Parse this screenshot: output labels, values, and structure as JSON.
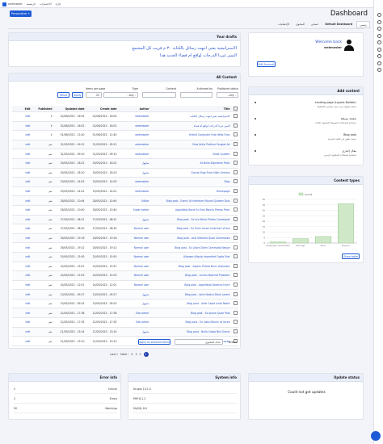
{
  "toolbar": {
    "items": [
      "webmaster",
      "الرئيسية",
      "الاختصارات",
      "إدارة"
    ]
  },
  "page_title": "Dashboard",
  "personalize": "Personalize +",
  "tabs": [
    "رئيسي",
    "Default Dashboard",
    "حسابي",
    "المحتوى",
    "الإحصائيات"
  ],
  "drafts": {
    "title": "Your drafts",
    "items": [
      "الاستراتيجية يعني انتهت رسائل بالكتابة ٣٠ م قريب كل المجتمع",
      "التميز غيرنا الدرجات لواقع ام فضاء الجديد هذا"
    ]
  },
  "content": {
    "title": "All Content",
    "filters": [
      {
        "label": "Published status",
        "value": "- Any -"
      },
      {
        "label": "Authored by",
        "value": ""
      },
      {
        "label": "Content",
        "value": ""
      },
      {
        "label": "Type",
        "value": "- Any -"
      },
      {
        "label": "Items per page",
        "value": "25"
      }
    ],
    "apply": "Apply",
    "reset": "Reset",
    "columns": [
      "Title",
      "Author",
      "Create date",
      "Updated date",
      "Published",
      "Edit"
    ],
    "rows": [
      [
        "الاستراتيجية يعني انتهت رسائل بالكتابة",
        "webmaster",
        "02/06/2023 - 16:05",
        "02/06/2023 - 16:05",
        "لا",
        "edit"
      ],
      [
        "التميز غيرنا الدرجات لواقع ام فضاء",
        "webmaster",
        "02/06/2023 - 16:02",
        "02/06/2023 - 16:02",
        "لا",
        "edit"
      ],
      [
        "Hybrid Computer Hub Hello Fuse",
        "webmaster",
        "01/06/2023 - 11:40",
        "01/06/2023 - 11:40",
        "لا",
        "edit"
      ],
      [
        "View Nulla Pretium Feugiat Ad",
        "webmaster",
        "31/05/2023 - 09:12",
        "31/05/2023 - 09:12",
        "نعم",
        "edit"
      ],
      [
        "Nulla Quidem",
        "webmaster",
        "31/05/2023 - 09:10",
        "31/05/2023 - 09:10",
        "نعم",
        "edit"
      ],
      [
        "At Nulla Dignissim Proin",
        "مجهول",
        "30/05/2023 - 18:22",
        "30/05/2023 - 18:22",
        "نعم",
        "edit"
      ],
      [
        "Gravis Eligo Proin Nibh Gemino",
        "مجهول",
        "30/05/2023 - 18:20",
        "30/05/2023 - 18:20",
        "نعم",
        "edit"
      ],
      [
        "Blog",
        "webmaster",
        "29/05/2023 - 14:05",
        "29/05/2023 - 14:05",
        "نعم",
        "edit"
      ],
      [
        "Homepage",
        "webmaster",
        "29/05/2023 - 14:01",
        "29/05/2023 - 14:01",
        "نعم",
        "edit"
      ],
      [
        "Blog post - Exerci Ut Interdum Mauris Quidem Duis",
        "Editor",
        "28/05/2023 - 10:44",
        "28/05/2023 - 10:44",
        "نعم",
        "edit"
      ],
      [
        "Appellatio Bene Ex Eros Mauris Premo Proin",
        "Super admin",
        "28/05/2023 - 10:40",
        "28/05/2023 - 10:40",
        "نعم",
        "edit"
      ],
      [
        "Blog post - Ex Ius Minim Platea Consequat",
        "مجهول",
        "27/05/2023 - 08:31",
        "27/05/2023 - 08:31",
        "نعم",
        "edit"
      ],
      [
        "Blog post - Ex Proin Lorem Interdum Virtus",
        "Normal user",
        "27/05/2023 - 08:30",
        "27/05/2023 - 08:30",
        "نعم",
        "edit"
      ],
      [
        "Blog post - Acsi Vidioma Quae Commoveo",
        "Normal user",
        "26/05/2023 - 19:16",
        "26/05/2023 - 19:16",
        "نعم",
        "edit"
      ],
      [
        "Blog post - Ex Litora Diam Commodo Neque",
        "Normal user",
        "26/05/2023 - 19:12",
        "26/05/2023 - 19:12",
        "نعم",
        "edit"
      ],
      [
        "Aliquam Aliquip Imperdiet Capto Erat",
        "Normal user",
        "25/05/2023 - 15:50",
        "25/05/2023 - 15:50",
        "نعم",
        "edit"
      ],
      [
        "Blog post - Sapien Persto Nunc Vulputate",
        "Normal user",
        "25/05/2023 - 15:47",
        "25/05/2023 - 15:47",
        "نعم",
        "edit"
      ],
      [
        "Blog post - Luctus Nostrud Praesent",
        "Normal user",
        "24/05/2023 - 12:03",
        "24/05/2023 - 12:03",
        "نعم",
        "edit"
      ],
      [
        "Blog post - Appellatio Decerno Iriure",
        "Normal user",
        "24/05/2023 - 12:01",
        "24/05/2023 - 12:01",
        "نعم",
        "edit"
      ],
      [
        "Blog post - Ante Nostra Diam Lorem",
        "مجهول",
        "23/05/2023 - 09:27",
        "23/05/2023 - 09:27",
        "نعم",
        "edit"
      ],
      [
        "Blog post - Ante Capto Iusto Nobis",
        "مجهول",
        "23/05/2023 - 09:25",
        "23/05/2023 - 09:25",
        "نعم",
        "edit"
      ],
      [
        "Blog post - Ex Ipsum Quae Pala",
        "Site admin",
        "22/05/2023 - 17:38",
        "22/05/2023 - 17:38",
        "نعم",
        "edit"
      ],
      [
        "Blog post - Ex Iusto Mauris Ut Iaceo",
        "Site admin",
        "22/05/2023 - 17:35",
        "22/05/2023 - 17:35",
        "نعم",
        "edit"
      ],
      [
        "Blog post - Nulla Capto Nisi Gravis",
        "مجهول",
        "21/05/2023 - 13:14",
        "21/05/2023 - 13:14",
        "نعم",
        "edit"
      ],
      [
        "Blog post - Sagaciter Mauris Torqueo",
        "مجهول",
        "21/05/2023 - 13:10",
        "21/05/2023 - 13:10",
        "نعم",
        "edit"
      ]
    ],
    "bulk": {
      "label": "Action",
      "value": "حذف المحتوى",
      "button": "Apply to selected items"
    },
    "pager": [
      "1",
      "2",
      "3",
      "4",
      "Next ›",
      "Last »"
    ]
  },
  "profile": {
    "greeting": "Welcome back",
    "name": "webmaster",
    "button": "Edit Account"
  },
  "add_content": {
    "title": "Add content",
    "items": [
      {
        "name": "Landing page (Layout Builder)",
        "description": "صفحة هبوط مرنة مبنية بمنشئ التخطيط"
      },
      {
        "name": "صفحة بسيطة",
        "description": "استخدم الصفحات البسيطة للمحتوى الثابت"
      },
      {
        "name": "Blog post",
        "description": "تدوينة تظهر في قائمة المدونة"
      },
      {
        "name": "مقال إخباري",
        "description": "استخدم المقالات للمحتوى الزمني"
      }
    ]
  },
  "chart_data": {
    "type": "bar",
    "title": "Content types",
    "legend": "Count",
    "categories": [
      "Landing page (Layout Builder)",
      "Basic page",
      "Article",
      "Blog post"
    ],
    "values": [
      1,
      4,
      6,
      36
    ],
    "color": "#cfe8c8",
    "ylim": [
      0,
      40
    ],
    "yticks": [
      0,
      5,
      10,
      15,
      20,
      25,
      30,
      35,
      40
    ],
    "grid": true,
    "button": "Show table"
  },
  "error_info": {
    "title": "Error info",
    "rows": [
      [
        "Critical",
        "2"
      ],
      [
        "Errors",
        "2"
      ],
      [
        "Warnings",
        "50"
      ]
    ]
  },
  "system_info": {
    "title": "System info",
    "rows": [
      "Drupal 10.1.5",
      "PHP 8.1.2",
      "MySQL 8.0"
    ]
  },
  "update_status": {
    "title": "Update status",
    "message": "Could not get updates"
  }
}
